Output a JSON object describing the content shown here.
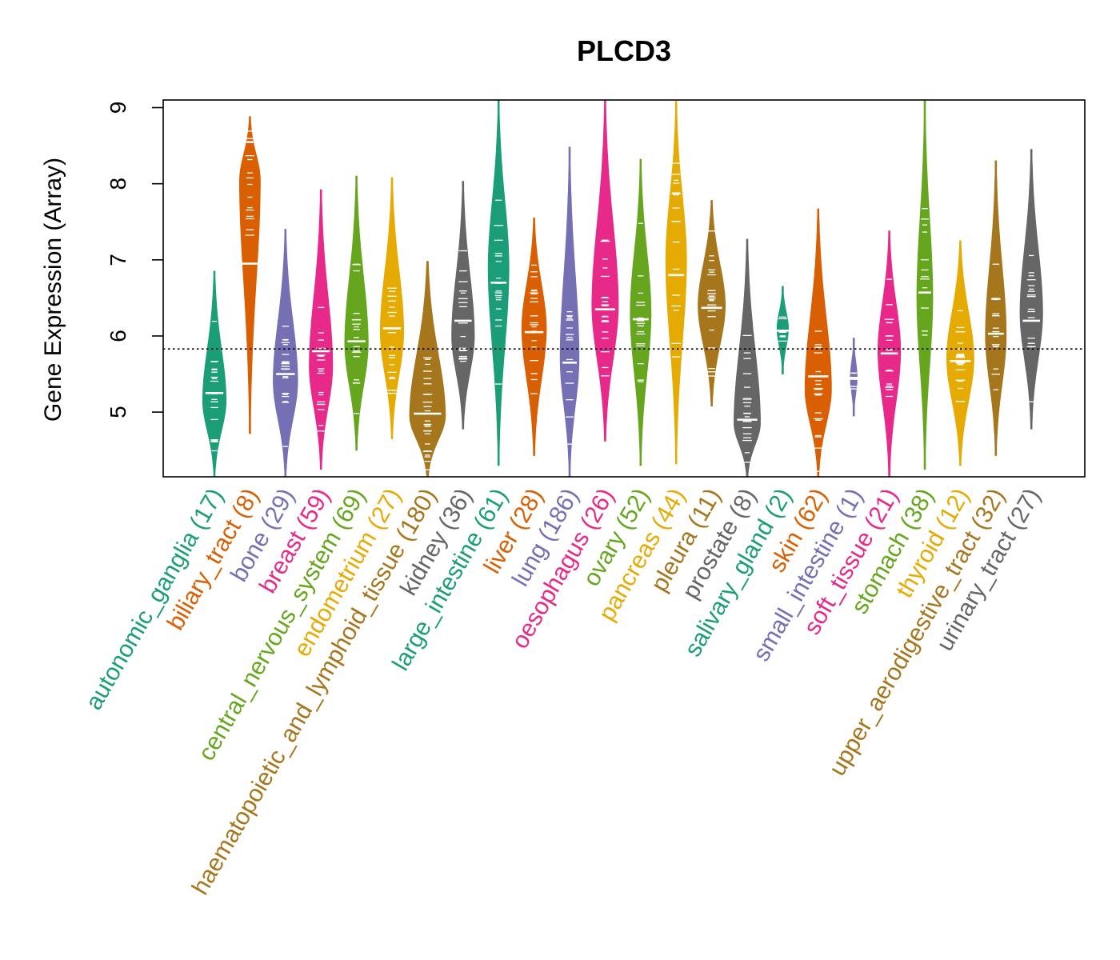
{
  "chart_data": {
    "type": "violin",
    "title": "PLCD3",
    "ylabel": "Gene Expression (Array)",
    "xlabel": "",
    "ylim": [
      4.15,
      9.1
    ],
    "yticks": [
      5,
      6,
      7,
      8,
      9
    ],
    "reference_line": 5.83,
    "categories": [
      {
        "label": "autonomic_ganglia (17)",
        "color": "#1B9E77",
        "median": 5.25,
        "min": 4.15,
        "max": 6.85,
        "mode": 5.15,
        "width": 0.62
      },
      {
        "label": "biliary_tract (8)",
        "color": "#D95F02",
        "median": 6.95,
        "min": 4.72,
        "max": 8.88,
        "mode": 8.05,
        "width": 0.55
      },
      {
        "label": "bone (29)",
        "color": "#7570B3",
        "median": 5.5,
        "min": 4.15,
        "max": 7.4,
        "mode": 5.4,
        "width": 0.65
      },
      {
        "label": "breast (59)",
        "color": "#E7298A",
        "median": 5.8,
        "min": 4.25,
        "max": 7.92,
        "mode": 5.6,
        "width": 0.62
      },
      {
        "label": "central_nervous_system (69)",
        "color": "#66A61E",
        "median": 5.93,
        "min": 4.5,
        "max": 8.1,
        "mode": 5.9,
        "width": 0.62
      },
      {
        "label": "endometrium (27)",
        "color": "#E6AB02",
        "median": 6.1,
        "min": 4.65,
        "max": 8.08,
        "mode": 6.05,
        "width": 0.62
      },
      {
        "label": "haematopoietic_and_lymphoid_tissue (180)",
        "color": "#A6761D",
        "median": 4.98,
        "min": 4.15,
        "max": 6.98,
        "mode": 4.95,
        "width": 0.95
      },
      {
        "label": "kidney (36)",
        "color": "#666666",
        "median": 6.2,
        "min": 4.78,
        "max": 8.03,
        "mode": 6.0,
        "width": 0.6
      },
      {
        "label": "large_intestine (61)",
        "color": "#1B9E77",
        "median": 6.7,
        "min": 4.3,
        "max": 9.1,
        "mode": 6.9,
        "width": 0.55
      },
      {
        "label": "liver (28)",
        "color": "#D95F02",
        "median": 6.05,
        "min": 4.43,
        "max": 7.55,
        "mode": 6.1,
        "width": 0.65
      },
      {
        "label": "lung (186)",
        "color": "#7570B3",
        "median": 5.65,
        "min": 4.15,
        "max": 8.48,
        "mode": 5.7,
        "width": 0.5
      },
      {
        "label": "oesophagus (26)",
        "color": "#E7298A",
        "median": 6.35,
        "min": 4.62,
        "max": 9.1,
        "mode": 6.4,
        "width": 0.7
      },
      {
        "label": "ovary (52)",
        "color": "#66A61E",
        "median": 6.22,
        "min": 4.3,
        "max": 8.32,
        "mode": 6.3,
        "width": 0.55
      },
      {
        "label": "pancreas (44)",
        "color": "#E6AB02",
        "median": 6.8,
        "min": 4.32,
        "max": 9.08,
        "mode": 7.0,
        "width": 0.55
      },
      {
        "label": "pleura (11)",
        "color": "#A6761D",
        "median": 6.37,
        "min": 5.08,
        "max": 7.78,
        "mode": 6.4,
        "width": 0.72
      },
      {
        "label": "prostate (8)",
        "color": "#666666",
        "median": 4.9,
        "min": 4.15,
        "max": 7.27,
        "mode": 4.85,
        "width": 0.7
      },
      {
        "label": "salivary_gland (2)",
        "color": "#1B9E77",
        "median": 6.07,
        "min": 5.5,
        "max": 6.65,
        "mode": 6.1,
        "width": 0.3
      },
      {
        "label": "skin (62)",
        "color": "#D95F02",
        "median": 5.47,
        "min": 4.15,
        "max": 7.67,
        "mode": 5.3,
        "width": 0.7
      },
      {
        "label": "small_intestine (1)",
        "color": "#7570B3",
        "median": 5.45,
        "min": 4.95,
        "max": 5.97,
        "mode": 5.45,
        "width": 0.18
      },
      {
        "label": "soft_tissue (21)",
        "color": "#E7298A",
        "median": 5.77,
        "min": 4.15,
        "max": 7.38,
        "mode": 5.8,
        "width": 0.6
      },
      {
        "label": "stomach (38)",
        "color": "#66A61E",
        "median": 6.57,
        "min": 4.25,
        "max": 9.1,
        "mode": 6.5,
        "width": 0.42
      },
      {
        "label": "thyroid (12)",
        "color": "#E6AB02",
        "median": 5.67,
        "min": 4.3,
        "max": 7.25,
        "mode": 5.7,
        "width": 0.72
      },
      {
        "label": "upper_aerodigestive_tract (32)",
        "color": "#A6761D",
        "median": 6.03,
        "min": 4.43,
        "max": 8.3,
        "mode": 6.0,
        "width": 0.55
      },
      {
        "label": "urinary_tract (27)",
        "color": "#666666",
        "median": 6.2,
        "min": 4.78,
        "max": 8.45,
        "mode": 6.3,
        "width": 0.6
      }
    ]
  }
}
